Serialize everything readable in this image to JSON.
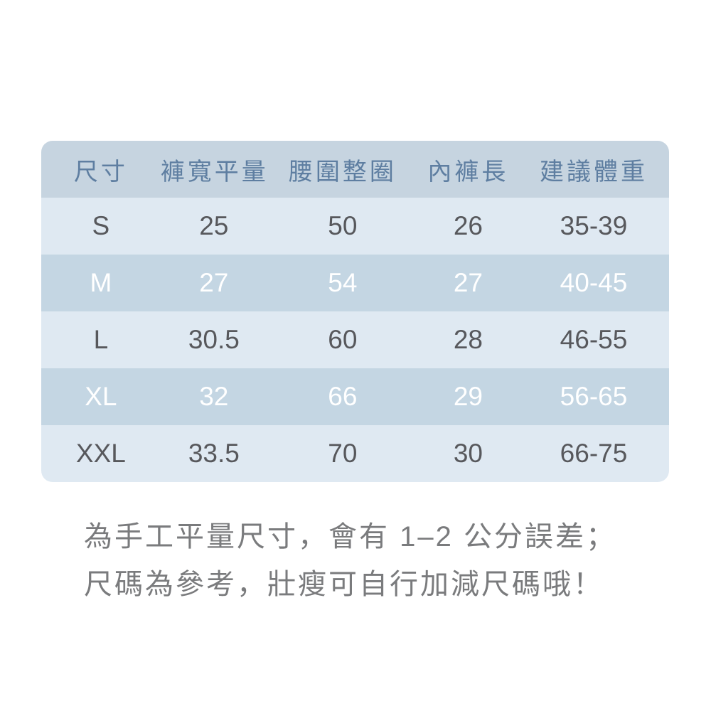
{
  "colors": {
    "page_background": "#ffffff",
    "header_bg": "#c6d4e0",
    "header_text": "#5e7ea1",
    "row_light_bg": "#dfe9f2",
    "row_medium_bg": "#c4d6e3",
    "row_dark_text": "#57585c",
    "row_white_text": "#ffffff",
    "note_text": "#7a7b7d"
  },
  "table": {
    "columns": [
      "尺寸",
      "褲寬平量",
      "腰圍整圈",
      "內褲長",
      "建議體重"
    ],
    "rows": [
      {
        "cells": [
          "S",
          "25",
          "50",
          "26",
          "35-39"
        ],
        "variant": "light"
      },
      {
        "cells": [
          "M",
          "27",
          "54",
          "27",
          "40-45"
        ],
        "variant": "medium"
      },
      {
        "cells": [
          "L",
          "30.5",
          "60",
          "28",
          "46-55"
        ],
        "variant": "light"
      },
      {
        "cells": [
          "XL",
          "32",
          "66",
          "29",
          "56-65"
        ],
        "variant": "medium"
      },
      {
        "cells": [
          "XXL",
          "33.5",
          "70",
          "30",
          "66-75"
        ],
        "variant": "light"
      }
    ]
  },
  "note": {
    "line1": "為手工平量尺寸，會有 1–2 公分誤差；",
    "line2": "尺碼為參考，壯瘦可自行加減尺碼哦！"
  },
  "chart_data": {
    "type": "table",
    "title": "",
    "columns": [
      "尺寸",
      "褲寬平量",
      "腰圍整圈",
      "內褲長",
      "建議體重"
    ],
    "rows": [
      [
        "S",
        25,
        50,
        26,
        "35-39"
      ],
      [
        "M",
        27,
        54,
        27,
        "40-45"
      ],
      [
        "L",
        30.5,
        60,
        28,
        "46-55"
      ],
      [
        "XL",
        32,
        66,
        29,
        "56-65"
      ],
      [
        "XXL",
        33.5,
        70,
        30,
        "66-75"
      ]
    ],
    "annotations": [
      "為手工平量尺寸，會有 1–2 公分誤差；",
      "尺碼為參考，壯瘦可自行加減尺碼哦！"
    ]
  }
}
